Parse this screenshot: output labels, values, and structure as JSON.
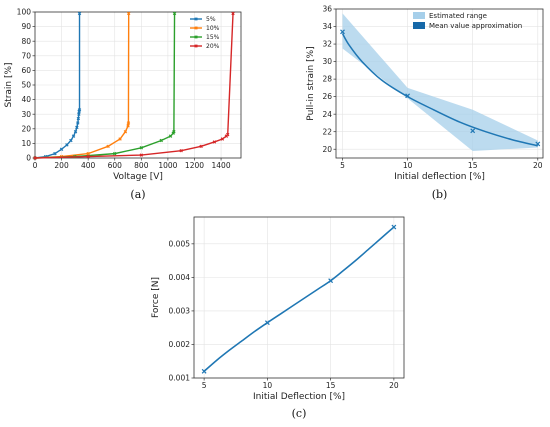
{
  "chart_data": [
    {
      "id": "a",
      "type": "line",
      "caption": "(a)",
      "xlabel": "Voltage [V]",
      "ylabel": "Strain [%]",
      "xlim": [
        0,
        1550
      ],
      "ylim": [
        0,
        100
      ],
      "xticks": [
        0,
        200,
        400,
        600,
        800,
        1000,
        1200,
        1400
      ],
      "yticks": [
        0,
        10,
        20,
        30,
        40,
        50,
        60,
        70,
        80,
        90,
        100
      ],
      "grid": true,
      "legend": "top-right",
      "series": [
        {
          "name": "5%",
          "color": "#1f77b4",
          "x": [
            0,
            80,
            150,
            200,
            240,
            270,
            290,
            305,
            315,
            322,
            326,
            330,
            332,
            335,
            335
          ],
          "y": [
            0,
            1,
            3,
            6,
            9,
            12,
            15,
            18,
            21,
            24,
            27,
            30,
            32,
            33,
            99
          ]
        },
        {
          "name": "10%",
          "color": "#ff7f0e",
          "x": [
            0,
            200,
            400,
            550,
            640,
            680,
            700,
            703,
            705
          ],
          "y": [
            0,
            1,
            3,
            8,
            13,
            18,
            22,
            24,
            99
          ]
        },
        {
          "name": "15%",
          "color": "#2ca02c",
          "x": [
            0,
            300,
            600,
            800,
            950,
            1020,
            1040,
            1045,
            1050
          ],
          "y": [
            0,
            1,
            3,
            7,
            12,
            15,
            17,
            18,
            99
          ]
        },
        {
          "name": "20%",
          "color": "#d62728",
          "x": [
            0,
            400,
            800,
            1100,
            1250,
            1350,
            1410,
            1440,
            1450,
            1490
          ],
          "y": [
            0,
            1,
            2,
            5,
            8,
            11,
            13,
            15,
            16,
            99
          ]
        }
      ]
    },
    {
      "id": "b",
      "type": "line",
      "caption": "(b)",
      "xlabel": "Initial deflection [%]",
      "ylabel": "Pull-in strain [%]",
      "xlim": [
        4.5,
        20.4
      ],
      "ylim": [
        19,
        36
      ],
      "xticks": [
        5,
        10,
        15,
        20
      ],
      "yticks": [
        20,
        22,
        24,
        26,
        28,
        30,
        32,
        34,
        36
      ],
      "grid": true,
      "legend": "top-right",
      "band_label": "Estimated range",
      "line_label": "Mean value approximation",
      "color": "#1f77b4",
      "band_color": "#a6cfea",
      "band": {
        "x": [
          5,
          10,
          15,
          20
        ],
        "lower": [
          31.5,
          25.8,
          19.8,
          20.2
        ],
        "upper": [
          35.5,
          27.0,
          24.5,
          21.0
        ]
      },
      "points": {
        "x": [
          5,
          10,
          15,
          20
        ],
        "y": [
          33.4,
          26.1,
          22.1,
          20.6
        ]
      },
      "fit": {
        "x": [
          5,
          5.5,
          6.5,
          8,
          10,
          12,
          14,
          16,
          18,
          20
        ],
        "y": [
          33.2,
          31.9,
          30.0,
          27.9,
          26.0,
          24.5,
          23.1,
          22.0,
          21.1,
          20.4
        ]
      }
    },
    {
      "id": "c",
      "type": "line",
      "caption": "(c)",
      "xlabel": "Initial Deflection [%]",
      "ylabel": "Force [N]",
      "xlim": [
        4.2,
        20.8
      ],
      "ylim": [
        0.001,
        0.0058
      ],
      "xticks": [
        5,
        10,
        15,
        20
      ],
      "yticks": [
        0.001,
        0.002,
        0.003,
        0.004,
        0.005
      ],
      "ytick_labels": [
        "0.001",
        "0.002",
        "0.003",
        "0.004",
        "0.005"
      ],
      "grid": true,
      "color": "#1f77b4",
      "points": {
        "x": [
          5,
          10,
          15,
          20
        ],
        "y": [
          0.0012,
          0.00265,
          0.0039,
          0.0055
        ]
      },
      "fit": {
        "x": [
          5,
          6,
          7,
          8,
          9,
          10,
          11,
          12,
          13,
          14,
          15,
          16,
          17,
          18,
          19,
          20
        ],
        "y": [
          0.0012,
          0.00153,
          0.00183,
          0.00211,
          0.00239,
          0.00265,
          0.0029,
          0.00315,
          0.0034,
          0.00365,
          0.0039,
          0.0042,
          0.00451,
          0.00484,
          0.00517,
          0.0055
        ]
      }
    }
  ]
}
